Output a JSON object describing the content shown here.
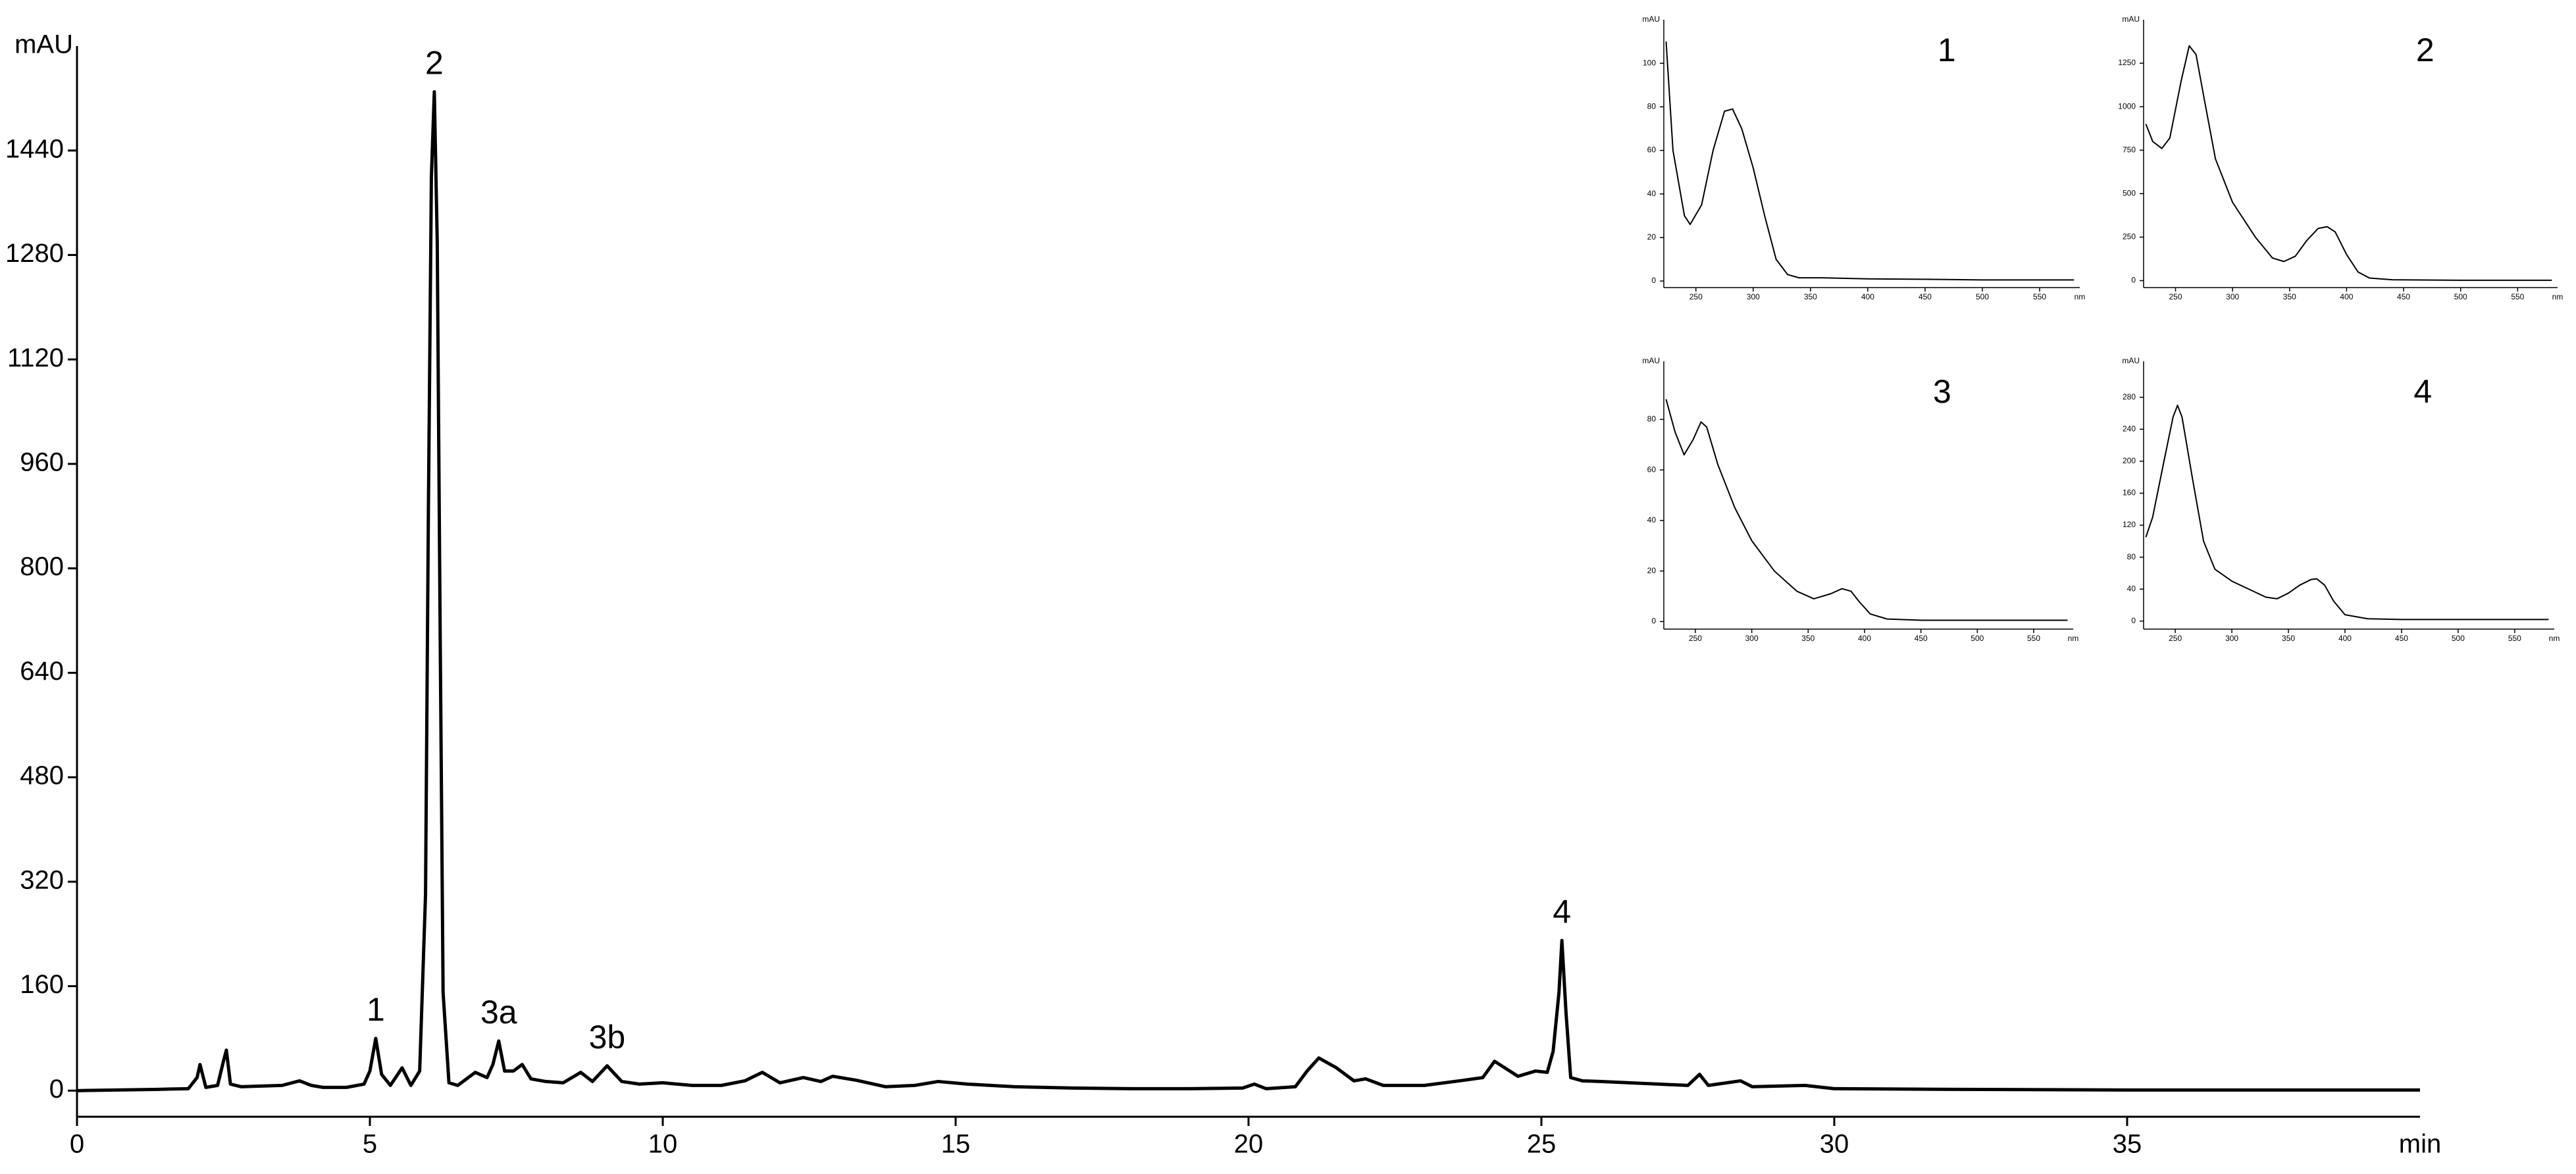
{
  "chart_data": [
    {
      "type": "line",
      "xlabel": "min",
      "ylabel": "mAU",
      "color": "#000000",
      "xlim": [
        0,
        40
      ],
      "ylim": [
        -40,
        1600
      ],
      "xticks": [
        0,
        5,
        10,
        15,
        20,
        25,
        30,
        35
      ],
      "yticks": [
        0,
        160,
        320,
        480,
        640,
        800,
        960,
        1120,
        1280,
        1440
      ],
      "x": [
        0,
        1.4,
        1.9,
        2.05,
        2.1,
        2.2,
        2.4,
        2.5,
        2.55,
        2.62,
        2.8,
        3.5,
        3.8,
        4.0,
        4.2,
        4.6,
        4.9,
        5.0,
        5.1,
        5.2,
        5.35,
        5.55,
        5.7,
        5.85,
        5.95,
        6.0,
        6.05,
        6.1,
        6.15,
        6.2,
        6.25,
        6.35,
        6.5,
        6.8,
        7.0,
        7.1,
        7.2,
        7.3,
        7.45,
        7.6,
        7.75,
        8.0,
        8.3,
        8.6,
        8.8,
        9.05,
        9.3,
        9.6,
        10.0,
        10.5,
        11.0,
        11.4,
        11.7,
        12.0,
        12.4,
        12.7,
        12.9,
        13.3,
        13.8,
        14.3,
        14.7,
        15.2,
        16,
        17,
        18,
        19,
        19.9,
        20.1,
        20.3,
        20.8,
        21.0,
        21.2,
        21.5,
        21.8,
        22.0,
        22.3,
        23,
        23.6,
        24.0,
        24.2,
        24.6,
        24.9,
        25.1,
        25.2,
        25.3,
        25.35,
        25.42,
        25.5,
        25.7,
        26,
        26.5,
        27,
        27.5,
        27.7,
        27.85,
        28.4,
        28.6,
        29.5,
        30,
        32,
        35,
        40
      ],
      "values": [
        0,
        2,
        3,
        20,
        40,
        5,
        8,
        45,
        62,
        10,
        6,
        8,
        15,
        8,
        5,
        5,
        10,
        30,
        80,
        25,
        8,
        35,
        8,
        30,
        300,
        900,
        1400,
        1530,
        1300,
        700,
        150,
        12,
        8,
        28,
        20,
        40,
        76,
        30,
        30,
        40,
        18,
        14,
        12,
        28,
        14,
        38,
        14,
        10,
        12,
        8,
        8,
        15,
        28,
        12,
        20,
        14,
        22,
        16,
        6,
        8,
        14,
        10,
        6,
        4,
        3,
        3,
        4,
        10,
        3,
        6,
        30,
        50,
        35,
        15,
        18,
        8,
        8,
        15,
        20,
        45,
        22,
        30,
        28,
        60,
        150,
        230,
        120,
        20,
        15,
        14,
        12,
        10,
        8,
        25,
        8,
        15,
        6,
        8,
        3,
        2,
        1,
        1
      ],
      "annotations": [
        {
          "text": "1",
          "x": 5.1,
          "y": 80
        },
        {
          "text": "2",
          "x": 6.1,
          "y": 1530
        },
        {
          "text": "3a",
          "x": 7.2,
          "y": 76
        },
        {
          "text": "3b",
          "x": 9.05,
          "y": 38
        },
        {
          "text": "4",
          "x": 25.35,
          "y": 230
        }
      ]
    },
    {
      "type": "line",
      "title": "1",
      "xlabel": "nm",
      "ylabel": "mAU",
      "color": "#000000",
      "xlim": [
        222,
        585
      ],
      "ylim": [
        -3,
        120
      ],
      "xticks": [
        250,
        300,
        350,
        400,
        450,
        500,
        550
      ],
      "yticks": [
        0,
        20,
        40,
        60,
        80,
        100
      ],
      "x": [
        224,
        230,
        240,
        245,
        255,
        265,
        275,
        282,
        290,
        300,
        310,
        320,
        330,
        340,
        360,
        400,
        450,
        500,
        580
      ],
      "values": [
        110,
        60,
        30,
        26,
        35,
        60,
        78,
        79,
        70,
        52,
        30,
        10,
        3,
        1.5,
        1.5,
        1,
        0.8,
        0.5,
        0.5
      ]
    },
    {
      "type": "line",
      "title": "2",
      "xlabel": "nm",
      "ylabel": "mAU",
      "color": "#000000",
      "xlim": [
        222,
        585
      ],
      "ylim": [
        -40,
        1500
      ],
      "xticks": [
        250,
        300,
        350,
        400,
        450,
        500,
        550
      ],
      "yticks": [
        0,
        250,
        500,
        750,
        1000,
        1250
      ],
      "x": [
        224,
        230,
        238,
        245,
        255,
        262,
        268,
        275,
        285,
        300,
        320,
        335,
        345,
        355,
        365,
        375,
        383,
        390,
        400,
        410,
        420,
        440,
        500,
        580
      ],
      "values": [
        900,
        800,
        760,
        820,
        1150,
        1350,
        1300,
        1050,
        700,
        450,
        250,
        130,
        110,
        140,
        230,
        300,
        310,
        280,
        150,
        50,
        15,
        5,
        2,
        2
      ]
    },
    {
      "type": "line",
      "title": "3",
      "xlabel": "nm",
      "ylabel": "mAU",
      "color": "#000000",
      "xlim": [
        222,
        585
      ],
      "ylim": [
        -3,
        103
      ],
      "xticks": [
        250,
        300,
        350,
        400,
        450,
        500,
        550
      ],
      "yticks": [
        0,
        20,
        40,
        60,
        80
      ],
      "x": [
        224,
        232,
        240,
        248,
        255,
        260,
        270,
        285,
        300,
        320,
        340,
        355,
        370,
        380,
        388,
        395,
        405,
        420,
        450,
        580
      ],
      "values": [
        88,
        75,
        66,
        72,
        79,
        77,
        62,
        45,
        32,
        20,
        12,
        9,
        11,
        13,
        12,
        8,
        3,
        1,
        0.5,
        0.5
      ]
    },
    {
      "type": "line",
      "title": "4",
      "xlabel": "nm",
      "ylabel": "mAU",
      "color": "#000000",
      "xlim": [
        222,
        585
      ],
      "ylim": [
        -10,
        325
      ],
      "xticks": [
        250,
        300,
        350,
        400,
        450,
        500,
        550
      ],
      "yticks": [
        0,
        40,
        80,
        120,
        160,
        200,
        240,
        280
      ],
      "x": [
        224,
        230,
        240,
        248,
        252,
        256,
        265,
        275,
        285,
        300,
        315,
        330,
        340,
        350,
        360,
        370,
        375,
        382,
        390,
        400,
        420,
        450,
        580
      ],
      "values": [
        105,
        130,
        200,
        255,
        270,
        255,
        180,
        100,
        65,
        50,
        40,
        30,
        28,
        35,
        45,
        52,
        53,
        45,
        25,
        8,
        3,
        2,
        2
      ]
    }
  ]
}
